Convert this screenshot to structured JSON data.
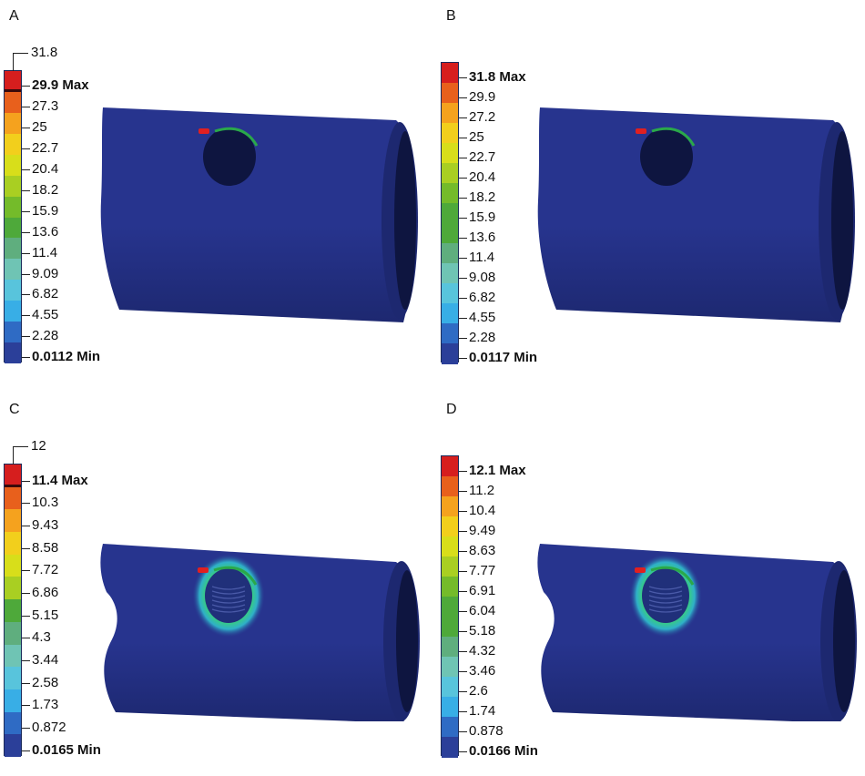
{
  "panels": [
    {
      "letter": "A",
      "top_value": "31.8",
      "max_label": "29.9 Max",
      "labels": [
        "27.3",
        "25",
        "22.7",
        "20.4",
        "18.2",
        "15.9",
        "13.6",
        "11.4",
        "9.09",
        "6.82",
        "4.55",
        "2.28"
      ],
      "min_label": "0.0112 Min",
      "variant": "outer"
    },
    {
      "letter": "B",
      "top_value": "",
      "max_label": "31.8 Max",
      "labels": [
        "29.9",
        "27.2",
        "25",
        "22.7",
        "20.4",
        "18.2",
        "15.9",
        "13.6",
        "11.4",
        "9.08",
        "6.82",
        "4.55",
        "2.28"
      ],
      "min_label": "0.0117 Min",
      "variant": "outer"
    },
    {
      "letter": "C",
      "top_value": "12",
      "max_label": "11.4 Max",
      "labels": [
        "10.3",
        "9.43",
        "8.58",
        "7.72",
        "6.86",
        "5.15",
        "4.3",
        "3.44",
        "2.58",
        "1.73",
        "0.872"
      ],
      "min_label": "0.0165 Min",
      "variant": "inner"
    },
    {
      "letter": "D",
      "top_value": "",
      "max_label": "12.1 Max",
      "labels": [
        "11.2",
        "10.4",
        "9.49",
        "8.63",
        "7.77",
        "6.91",
        "6.04",
        "5.18",
        "4.32",
        "3.46",
        "2.6",
        "1.74",
        "0.878"
      ],
      "min_label": "0.0166 Min",
      "variant": "inner"
    }
  ],
  "colors": {
    "scale": [
      "#d61e1e",
      "#e8601c",
      "#f5a21e",
      "#f2cf1c",
      "#d8de1a",
      "#a9cf22",
      "#74bb2a",
      "#4ea93a",
      "#5fae7e",
      "#6fc4b4",
      "#58c4dc",
      "#38aee6",
      "#2f6bc4",
      "#2b3f99"
    ],
    "model_body": "#27348e",
    "model_shade": "#1d2870",
    "model_dark": "#0e1540"
  }
}
